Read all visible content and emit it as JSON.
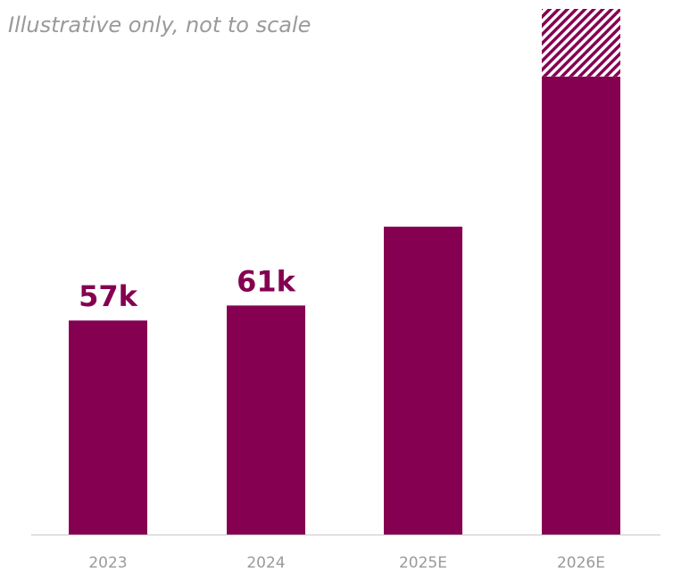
{
  "note": "Illustrative only, not to scale",
  "colors": {
    "bar": "#850051",
    "hatch_bg": "#ffffff",
    "axis": "#c8c8c8",
    "category_text": "#9a9a9a"
  },
  "chart_data": {
    "type": "bar",
    "categories": [
      "2023",
      "2024",
      "2025E",
      "2026E"
    ],
    "series": [
      {
        "values": [
          57,
          61,
          82,
          122
        ]
      }
    ],
    "upside": [
      0,
      0,
      0,
      18
    ],
    "data_labels": [
      "57k",
      "61k",
      "",
      ""
    ],
    "title": "",
    "xlabel": "",
    "ylabel": "",
    "ylim": [
      0,
      140
    ],
    "grid": false,
    "legend": "none"
  }
}
